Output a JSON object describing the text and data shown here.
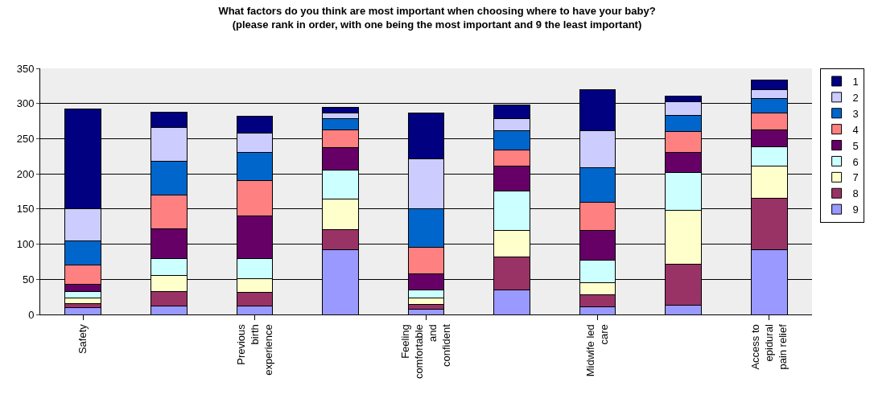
{
  "chart_data": {
    "type": "bar",
    "stacked": true,
    "title": "What factors do you think are most important when choosing where to have your baby?\n(please rank in order, with one being the most important and 9 the least important)",
    "categories": [
      "Safety",
      null,
      "Previous birth experience",
      null,
      "Feeling comfortable and confident",
      null,
      "Midwife led care",
      null,
      "Access to epidural pain relief"
    ],
    "series": [
      {
        "name": "9",
        "color": "#9999ff",
        "values": [
          10,
          12,
          12,
          92,
          7,
          35,
          11,
          13,
          92
        ]
      },
      {
        "name": "8",
        "color": "#993366",
        "values": [
          6,
          21,
          19,
          29,
          7,
          47,
          17,
          59,
          73
        ]
      },
      {
        "name": "7",
        "color": "#ffffcc",
        "values": [
          7,
          23,
          20,
          43,
          10,
          38,
          17,
          76,
          46
        ]
      },
      {
        "name": "6",
        "color": "#ccffff",
        "values": [
          10,
          23,
          28,
          41,
          11,
          56,
          32,
          54,
          28
        ]
      },
      {
        "name": "5",
        "color": "#660066",
        "values": [
          10,
          43,
          61,
          32,
          23,
          35,
          43,
          29,
          23
        ]
      },
      {
        "name": "4",
        "color": "#ff8080",
        "values": [
          27,
          48,
          50,
          25,
          38,
          23,
          39,
          29,
          25
        ]
      },
      {
        "name": "3",
        "color": "#0066cc",
        "values": [
          35,
          48,
          40,
          17,
          54,
          27,
          50,
          23,
          20
        ]
      },
      {
        "name": "2",
        "color": "#ccccff",
        "values": [
          45,
          48,
          28,
          8,
          71,
          18,
          52,
          20,
          13
        ]
      },
      {
        "name": "1",
        "color": "#000080",
        "values": [
          142,
          22,
          24,
          7,
          65,
          19,
          59,
          7,
          13
        ]
      }
    ],
    "ylim": [
      0,
      350
    ],
    "yticks": [
      0,
      50,
      100,
      150,
      200,
      250,
      300,
      350
    ],
    "grid": "y",
    "legend": "right"
  }
}
